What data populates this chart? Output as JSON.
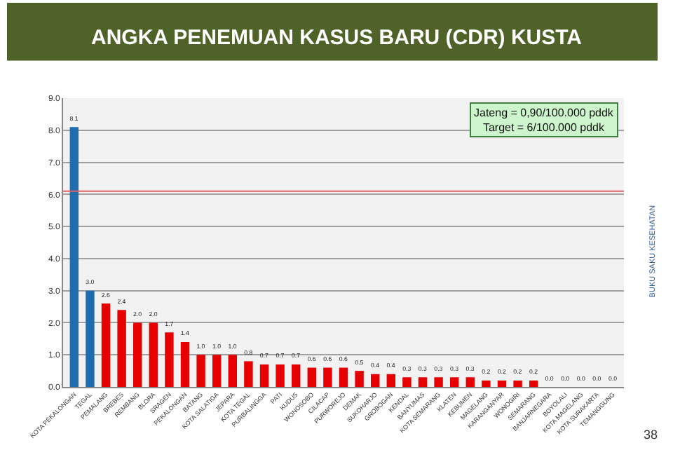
{
  "chart_data": {
    "type": "bar",
    "title": "ANGKA PENEMUAN KASUS BARU (CDR) KUSTA",
    "categories": [
      "KOTA PEKALONGAN",
      "TEGAL",
      "PEMALANG",
      "BREBES",
      "REMBANG",
      "BLORA",
      "SRAGEN",
      "PEKALONGAN",
      "BATANG",
      "KOTA SALATIGA",
      "JEPARA",
      "KOTA TEGAL",
      "PURBALINGGA",
      "PATI",
      "KUDUS",
      "WONOSOBO",
      "CILACAP",
      "PURWOREJO",
      "DEMAK",
      "SUKOHARJO",
      "GROBOGAN",
      "KENDAL",
      "BANYUMAS",
      "KOTA SEMARANG",
      "KLATEN",
      "KEBUMEN",
      "MAGELANG",
      "KARANGANYAR",
      "WONOGIRI",
      "SEMARANG",
      "BANJARNEGARA",
      "BOYOLALI",
      "KOTA MAGELANG",
      "KOTA SURAKARTA",
      "TEMANGGUNG"
    ],
    "values": [
      8.1,
      3.0,
      2.6,
      2.4,
      2.0,
      2.0,
      1.7,
      1.4,
      1.0,
      1.0,
      1.0,
      0.8,
      0.7,
      0.7,
      0.7,
      0.6,
      0.6,
      0.6,
      0.5,
      0.4,
      0.4,
      0.3,
      0.3,
      0.3,
      0.3,
      0.3,
      0.2,
      0.2,
      0.2,
      0.2,
      0.0,
      0.0,
      0.0,
      0.0,
      0.0
    ],
    "value_labels": [
      "8.1",
      "3.0",
      "2.6",
      "2.4",
      "2.0",
      "2.0",
      "1.7",
      "1.4",
      "1.0",
      "1.0",
      "1.0",
      "0.8",
      "0.7",
      "0.7",
      "0.7",
      "0.6",
      "0.6",
      "0.6",
      "0.5",
      "0.4",
      "0.4",
      "0.3",
      "0.3",
      "0.3",
      "0.3",
      "0.3",
      "0.2",
      "0.2",
      "0.2",
      "0.2",
      "0.0",
      "0.0",
      "0.0",
      "0.0",
      "0.0"
    ],
    "colors": [
      "#1f6cb0",
      "#1f6cb0",
      "#e60000",
      "#e60000",
      "#e60000",
      "#e60000",
      "#e60000",
      "#e60000",
      "#e60000",
      "#e60000",
      "#e60000",
      "#e60000",
      "#e60000",
      "#e60000",
      "#e60000",
      "#e60000",
      "#e60000",
      "#e60000",
      "#e60000",
      "#e60000",
      "#e60000",
      "#e60000",
      "#e60000",
      "#e60000",
      "#e60000",
      "#e60000",
      "#e60000",
      "#e60000",
      "#e60000",
      "#e60000",
      "#e60000",
      "#e60000",
      "#e60000",
      "#e60000",
      "#e60000"
    ],
    "ylim": [
      0,
      9
    ],
    "yticks": [
      {
        "value": 0,
        "label": "0.0"
      },
      {
        "value": 1,
        "label": "1.0"
      },
      {
        "value": 2,
        "label": "2.0"
      },
      {
        "value": 3,
        "label": "3.0"
      },
      {
        "value": 4,
        "label": "4.0"
      },
      {
        "value": 5,
        "label": "5.0"
      },
      {
        "value": 6,
        "label": "6.0"
      },
      {
        "value": 7,
        "label": "7.0"
      },
      {
        "value": 8,
        "label": "8.0"
      },
      {
        "value": 9,
        "label": "9.0"
      }
    ],
    "grid": "y",
    "ref_lines": [
      {
        "axis": "y",
        "value": 6.1,
        "color": "#e06060"
      }
    ],
    "annotations": [
      "Jateng = 0,90/100.000 pddk\nTarget = 6/100.000 pddk",
      "BUKU SAKU KESEHATAN",
      "38"
    ]
  }
}
